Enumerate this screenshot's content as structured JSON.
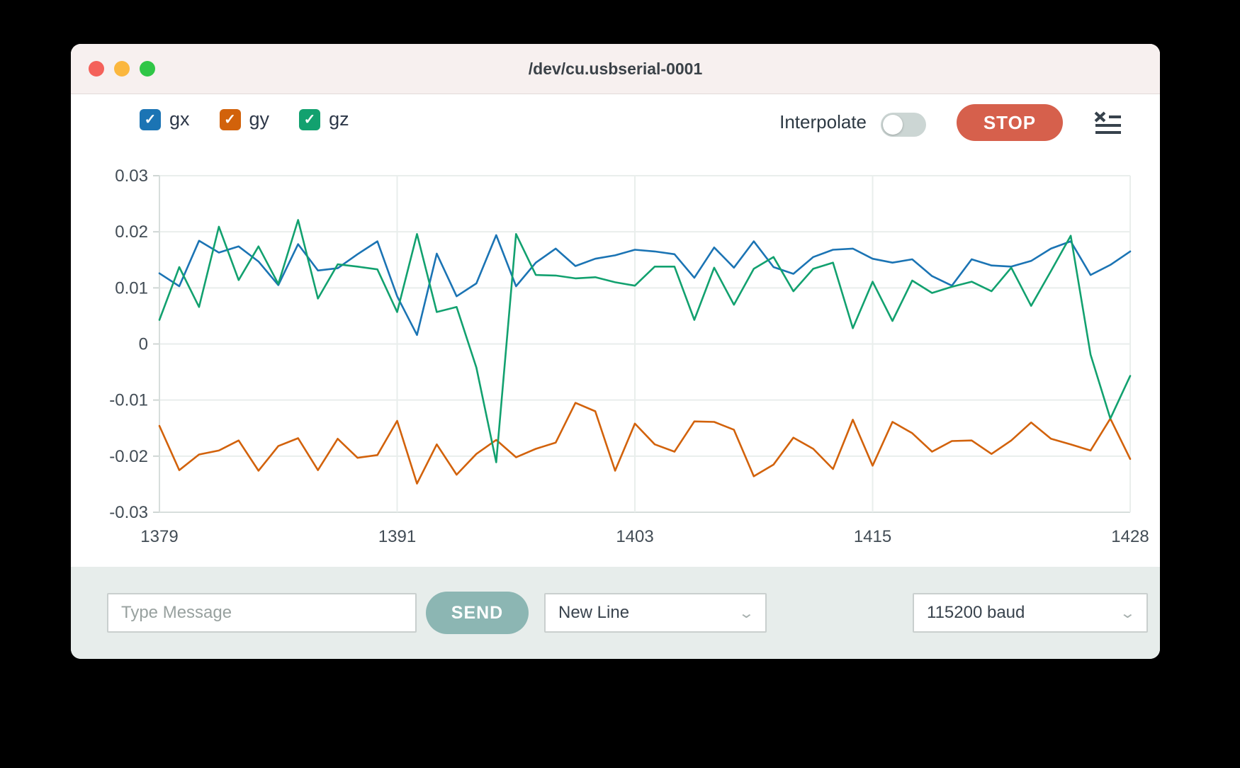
{
  "window": {
    "title": "/dev/cu.usbserial-0001"
  },
  "toolbar": {
    "series_toggles": [
      {
        "label": "gx",
        "color": "#1b74b4",
        "checked": true
      },
      {
        "label": "gy",
        "color": "#d2620b",
        "checked": true
      },
      {
        "label": "gz",
        "color": "#12a16f",
        "checked": true
      }
    ],
    "interpolate_label": "Interpolate",
    "interpolate_on": false,
    "stop_label": "STOP",
    "stop_color": "#d6604c",
    "list_icon": "clear-console-icon"
  },
  "chart_data": {
    "type": "line",
    "x": [
      1379,
      1380,
      1381,
      1382,
      1383,
      1384,
      1385,
      1386,
      1387,
      1388,
      1389,
      1390,
      1391,
      1392,
      1393,
      1394,
      1395,
      1396,
      1397,
      1398,
      1399,
      1400,
      1401,
      1402,
      1403,
      1404,
      1405,
      1406,
      1407,
      1408,
      1409,
      1410,
      1411,
      1412,
      1413,
      1414,
      1415,
      1416,
      1417,
      1418,
      1419,
      1420,
      1421,
      1422,
      1423,
      1424,
      1425,
      1426,
      1427,
      1428
    ],
    "series": [
      {
        "name": "gx",
        "color": "#1b74b4",
        "values": [
          0.0126,
          0.0103,
          0.0184,
          0.0163,
          0.0174,
          0.0147,
          0.0105,
          0.0178,
          0.0131,
          0.0135,
          0.016,
          0.0183,
          0.0085,
          0.0016,
          0.0161,
          0.0085,
          0.0108,
          0.0194,
          0.0103,
          0.0145,
          0.017,
          0.0139,
          0.0152,
          0.0158,
          0.0168,
          0.0165,
          0.016,
          0.0118,
          0.0172,
          0.0136,
          0.0183,
          0.0137,
          0.0125,
          0.0155,
          0.0168,
          0.017,
          0.0152,
          0.0145,
          0.0151,
          0.0121,
          0.0104,
          0.0151,
          0.014,
          0.0138,
          0.0148,
          0.017,
          0.0183,
          0.0123,
          0.0141,
          0.0165
        ]
      },
      {
        "name": "gy",
        "color": "#d2620b",
        "values": [
          -0.0146,
          -0.0225,
          -0.0197,
          -0.019,
          -0.0172,
          -0.0226,
          -0.0182,
          -0.0168,
          -0.0225,
          -0.0169,
          -0.0203,
          -0.0198,
          -0.0137,
          -0.0249,
          -0.0179,
          -0.0233,
          -0.0196,
          -0.0171,
          -0.0202,
          -0.0187,
          -0.0176,
          -0.0105,
          -0.012,
          -0.0226,
          -0.0142,
          -0.0179,
          -0.0192,
          -0.0138,
          -0.0139,
          -0.0153,
          -0.0236,
          -0.0215,
          -0.0167,
          -0.0187,
          -0.0223,
          -0.0135,
          -0.0217,
          -0.0139,
          -0.0159,
          -0.0192,
          -0.0173,
          -0.0172,
          -0.0196,
          -0.0172,
          -0.014,
          -0.0169,
          -0.0179,
          -0.019,
          -0.0133,
          -0.0205
        ]
      },
      {
        "name": "gz",
        "color": "#12a16f",
        "values": [
          0.0043,
          0.0137,
          0.0066,
          0.0209,
          0.0114,
          0.0174,
          0.0107,
          0.0221,
          0.0081,
          0.0142,
          0.0138,
          0.0133,
          0.0057,
          0.0196,
          0.0057,
          0.0066,
          -0.0042,
          -0.0211,
          0.0196,
          0.0123,
          0.0122,
          0.0117,
          0.0119,
          0.011,
          0.0104,
          0.0138,
          0.0138,
          0.0043,
          0.0136,
          0.007,
          0.0134,
          0.0155,
          0.0094,
          0.0134,
          0.0145,
          0.0028,
          0.0111,
          0.0041,
          0.0113,
          0.0091,
          0.0102,
          0.0111,
          0.0094,
          0.0136,
          0.0068,
          0.013,
          0.0193,
          -0.0019,
          -0.0133,
          -0.0057
        ]
      }
    ],
    "title": "",
    "xlabel": "",
    "ylabel": "",
    "xlim": [
      1379,
      1428
    ],
    "ylim": [
      -0.03,
      0.03
    ],
    "y_tick_labels": [
      "0.03",
      "0.02",
      "0.01",
      "0",
      "-0.01",
      "-0.02",
      "-0.03"
    ],
    "y_ticks": [
      0.03,
      0.02,
      0.01,
      0,
      -0.01,
      -0.02,
      -0.03
    ],
    "x_ticks": [
      1379,
      1391,
      1403,
      1415,
      1428
    ],
    "grid": true,
    "legend_position": "top-left"
  },
  "bottom_bar": {
    "message_placeholder": "Type Message",
    "send_label": "SEND",
    "send_color": "#8cb6b3",
    "line_ending_value": "New Line",
    "baud_value": "115200 baud"
  }
}
